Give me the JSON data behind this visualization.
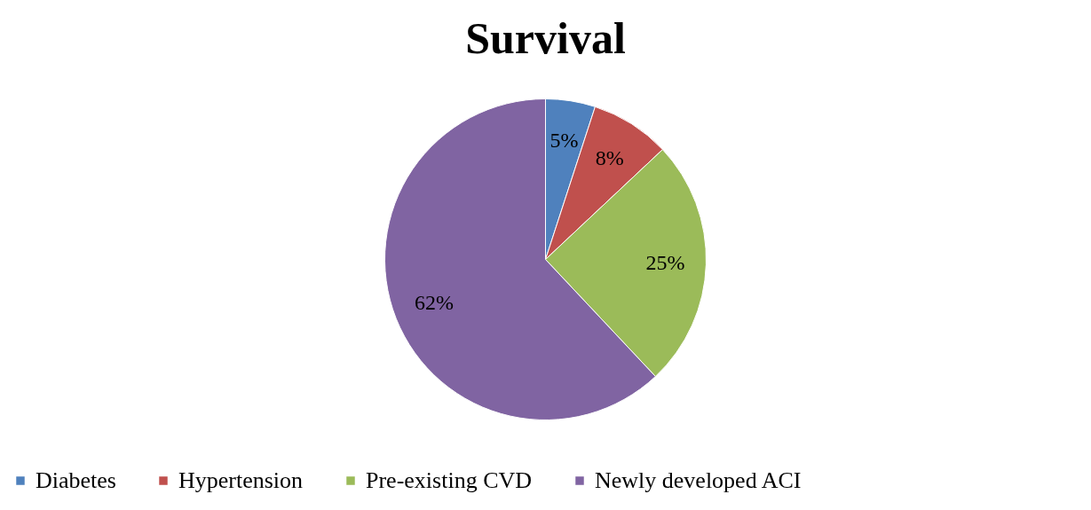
{
  "chart_data": {
    "type": "pie",
    "title": "Survival",
    "categories": [
      "Diabetes",
      "Hypertension",
      "Pre-existing CVD",
      "Newly developed ACI"
    ],
    "values": [
      5,
      8,
      25,
      62
    ],
    "colors": [
      "#4f81bd",
      "#c0504d",
      "#9bbb59",
      "#8064a2"
    ],
    "value_labels": [
      "5%",
      "8%",
      "25%",
      "62%"
    ],
    "legend": "bottom"
  }
}
